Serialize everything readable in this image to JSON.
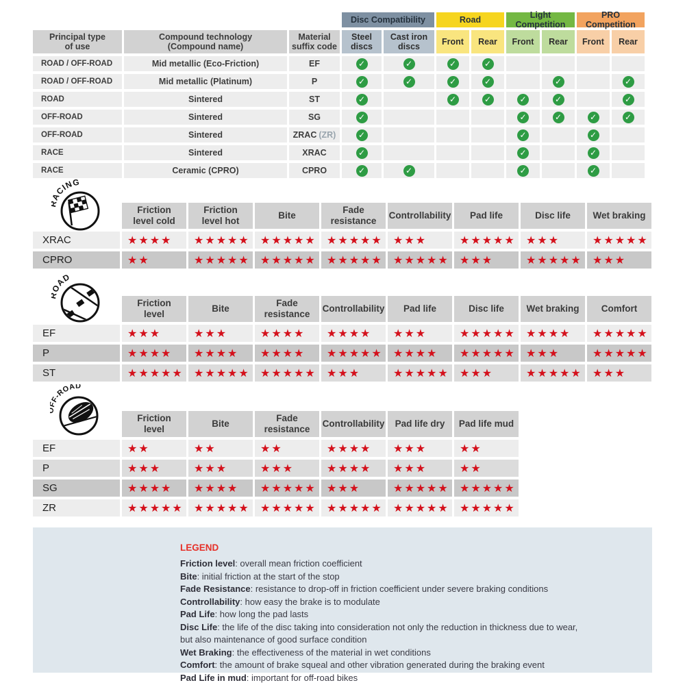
{
  "colors": {
    "star_red": "#d4111c",
    "check_green": "#2e9c44",
    "legend_red": "#e63028",
    "legend_bg": "#dfe7ed",
    "row_light": "#ededed",
    "row_mid": "#dcdcdc",
    "row_dark": "#c8c8c8",
    "header_gray": "#d2d2d2"
  },
  "compat": {
    "groups": [
      {
        "label": "Disc Compatibility",
        "bg": "#7e90a2",
        "start": 4,
        "span": 2
      },
      {
        "label": "Road",
        "bg": "#f6d51f",
        "start": 6,
        "span": 2
      },
      {
        "label": "Light Competition",
        "bg": "#74b843",
        "start": 8,
        "span": 2
      },
      {
        "label": "PRO Competition",
        "bg": "#f2a35f",
        "start": 10,
        "span": 2
      }
    ],
    "headers": [
      "Principal type\nof use",
      "Compound technology\n(Compound name)",
      "Material\nsuffix code"
    ],
    "sub_headers": [
      {
        "label": "Steel\ndiscs",
        "bg": "#b6c2cd"
      },
      {
        "label": "Cast iron\ndiscs",
        "bg": "#b6c2cd"
      },
      {
        "label": "Front",
        "bg": "#f9e57f"
      },
      {
        "label": "Rear",
        "bg": "#f9e57f"
      },
      {
        "label": "Front",
        "bg": "#bedc9d"
      },
      {
        "label": "Rear",
        "bg": "#bedc9d"
      },
      {
        "label": "Front",
        "bg": "#f8cfa7"
      },
      {
        "label": "Rear",
        "bg": "#f8cfa7"
      }
    ],
    "rows": [
      {
        "use": "ROAD / OFF-ROAD",
        "compound": "Mid metallic (Eco-Friction)",
        "code": "EF",
        "note": "",
        "checks": [
          1,
          1,
          1,
          1,
          0,
          0,
          0,
          0
        ]
      },
      {
        "use": "ROAD / OFF-ROAD",
        "compound": "Mid metallic (Platinum)",
        "code": "P",
        "note": "",
        "checks": [
          1,
          1,
          1,
          1,
          0,
          1,
          0,
          1
        ]
      },
      {
        "use": "ROAD",
        "compound": "Sintered",
        "code": "ST",
        "note": "",
        "checks": [
          1,
          0,
          1,
          1,
          1,
          1,
          0,
          1
        ]
      },
      {
        "use": "OFF-ROAD",
        "compound": "Sintered",
        "code": "SG",
        "note": "",
        "checks": [
          1,
          0,
          0,
          0,
          1,
          1,
          1,
          1
        ]
      },
      {
        "use": "OFF-ROAD",
        "compound": "Sintered",
        "code": "ZRAC",
        "note": "(ZR)",
        "checks": [
          1,
          0,
          0,
          0,
          1,
          0,
          1,
          0
        ]
      },
      {
        "use": "RACE",
        "compound": "Sintered",
        "code": "XRAC",
        "note": "",
        "checks": [
          1,
          0,
          0,
          0,
          1,
          0,
          1,
          0
        ]
      },
      {
        "use": "RACE",
        "compound": "Ceramic (CPRO)",
        "code": "CPRO",
        "note": "",
        "checks": [
          1,
          1,
          0,
          0,
          1,
          0,
          1,
          0
        ]
      }
    ]
  },
  "sections": {
    "racing": {
      "badge_label": "RACING",
      "headers": [
        "Friction\nlevel cold",
        "Friction\nlevel hot",
        "Bite",
        "Fade\nresistance",
        "Controllability",
        "Pad life",
        "Disc life",
        "Wet braking"
      ],
      "rows": [
        {
          "label": "XRAC",
          "shade": "light",
          "stars": [
            4,
            5,
            5,
            5,
            3,
            5,
            3,
            5
          ]
        },
        {
          "label": "CPRO",
          "shade": "dark",
          "stars": [
            2,
            5,
            5,
            5,
            5,
            3,
            5,
            3
          ]
        }
      ]
    },
    "road": {
      "badge_label": "ROAD",
      "headers": [
        "Friction\nlevel",
        "Bite",
        "Fade\nresistance",
        "Controllability",
        "Pad life",
        "Disc life",
        "Wet braking",
        "Comfort"
      ],
      "rows": [
        {
          "label": "EF",
          "shade": "light",
          "stars": [
            3,
            3,
            4,
            4,
            3,
            5,
            4,
            5
          ]
        },
        {
          "label": "P",
          "shade": "dark",
          "stars": [
            4,
            4,
            4,
            5,
            4,
            5,
            3,
            5
          ]
        },
        {
          "label": "ST",
          "shade": "mid",
          "stars": [
            5,
            5,
            5,
            3,
            5,
            3,
            5,
            3
          ]
        }
      ]
    },
    "offroad": {
      "badge_label": "OFF-ROAD",
      "headers": [
        "Friction\nlevel",
        "Bite",
        "Fade\nresistance",
        "Controllability",
        "Pad life dry",
        "Pad life mud"
      ],
      "rows": [
        {
          "label": "EF",
          "shade": "light",
          "stars": [
            2,
            2,
            2,
            4,
            3,
            2
          ]
        },
        {
          "label": "P",
          "shade": "mid",
          "stars": [
            3,
            3,
            3,
            4,
            3,
            2
          ]
        },
        {
          "label": "SG",
          "shade": "dark",
          "stars": [
            4,
            4,
            5,
            3,
            5,
            5
          ]
        },
        {
          "label": "ZR",
          "shade": "light",
          "stars": [
            5,
            5,
            5,
            5,
            5,
            5
          ]
        }
      ]
    }
  },
  "legend": {
    "title": "LEGEND",
    "entries": [
      {
        "term": "Friction level",
        "desc": "overall mean friction coefficient"
      },
      {
        "term": "Bite",
        "desc": "initial friction at the start of the stop"
      },
      {
        "term": "Fade Resistance",
        "desc": "resistance to drop-off in friction coefficient under severe braking conditions"
      },
      {
        "term": "Controllability",
        "desc": "how easy the brake is to modulate"
      },
      {
        "term": "Pad Life",
        "desc": "how long the pad lasts"
      },
      {
        "term": "Disc Life",
        "desc": "the life of the disc taking into consideration not only the reduction in thickness due to wear,"
      },
      {
        "term": "",
        "desc": "but also maintenance of good surface condition"
      },
      {
        "term": "Wet Braking",
        "desc": "the effectiveness of the material in wet conditions"
      },
      {
        "term": "Comfort",
        "desc": "the amount of brake squeal and other vibration generated during the braking event"
      },
      {
        "term": "Pad Life in mud",
        "desc": "important for off-road bikes"
      }
    ]
  }
}
